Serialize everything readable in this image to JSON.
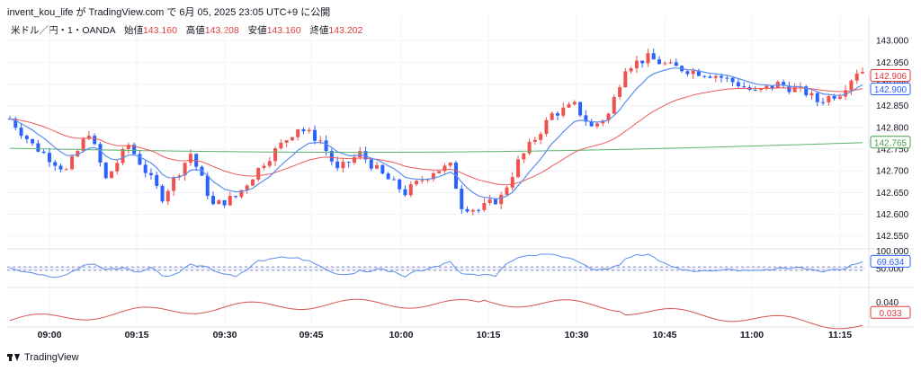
{
  "header": {
    "author": "invent_kou_life",
    "text": " が TradingView.com で 6月 05, 2025 23:05 UTC+9 に公開"
  },
  "legend": {
    "symbol": "米ドル／円・1・OANDA",
    "open_label": "始値",
    "open": "143.160",
    "high_label": "高値",
    "high": "143.208",
    "low_label": "安値",
    "low": "143.160",
    "close_label": "終値",
    "close": "143.202"
  },
  "footer": {
    "brand": "TradingView"
  },
  "colors": {
    "up": "#ef5350",
    "down": "#2962ff",
    "ma_fast": "#5b8def",
    "ma_mid": "#ee5a5a",
    "ma_slow": "#5fb26b",
    "rsi": "#5b8def",
    "osc": "#d9534f",
    "grid": "#f0f3fa"
  },
  "chart_data": {
    "type": "candlestick",
    "y_ticks": [
      "143.000",
      "142.950",
      "142.900",
      "142.850",
      "142.800",
      "142.750",
      "142.700",
      "142.650",
      "142.600",
      "142.550"
    ],
    "y_range": [
      142.535,
      143.025
    ],
    "x_ticks": [
      "09:00",
      "09:15",
      "09:30",
      "09:45",
      "10:00",
      "10:15",
      "10:30",
      "10:45",
      "11:00",
      "11:15"
    ],
    "price_labels": [
      {
        "value": 142.906,
        "text": "142.906",
        "color": "#e03a3e"
      },
      {
        "value": 142.9,
        "text": "142.900",
        "color": "#2962ff"
      },
      {
        "value": 142.765,
        "text": "142.765",
        "color": "#43a047"
      }
    ],
    "rsi": {
      "ticks": [
        "100.000",
        "50.000"
      ],
      "value_label": "69.634",
      "range": [
        0,
        100
      ]
    },
    "osc": {
      "tick": "0.040",
      "value_label": "0.033",
      "range": [
        0.025,
        0.046
      ]
    }
  }
}
